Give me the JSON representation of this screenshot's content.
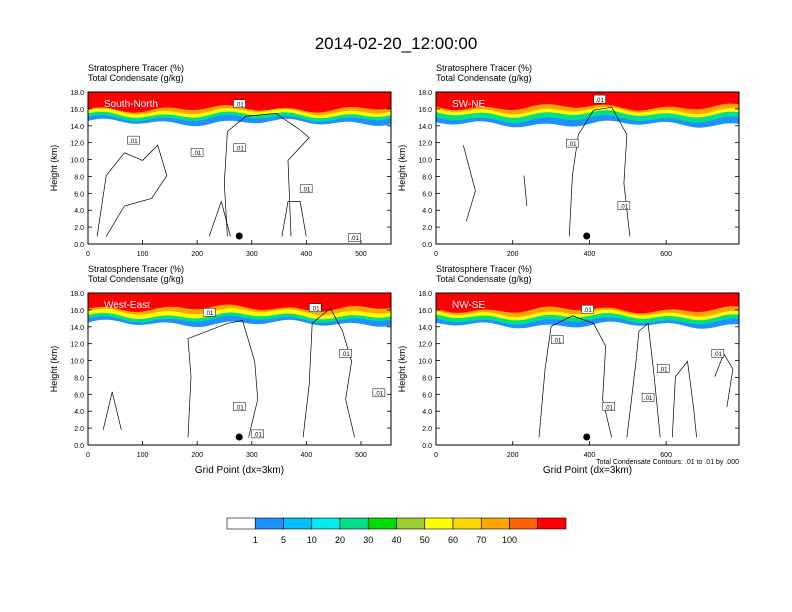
{
  "figure": {
    "title": "2014-02-20_12:00:00",
    "panel_subtitle_1": "Stratosphere Tracer   (%)",
    "panel_subtitle_2": "Total Condensate   (g/kg)",
    "ylabel": "Height (km)",
    "xlabel": "Grid Point (dx=3km)",
    "contour_note": "Total Condensate Contours: .01 to .01 by .000"
  },
  "chart_data": [
    {
      "type": "heatmap",
      "panel": "South-North",
      "ylim": [
        0,
        18
      ],
      "xlim": [
        0,
        555
      ],
      "yticks": [
        "0.0",
        "2.0",
        "4.0",
        "6.0",
        "8.0",
        "10.0",
        "12.0",
        "14.0",
        "16.0",
        "18.0"
      ],
      "xticks": [
        "0",
        "100",
        "200",
        "300",
        "400",
        "500"
      ],
      "tracer_bands_km": {
        "100": 16.0,
        "70": 15.7,
        "50": 15.3,
        "20": 14.9,
        "1": 14.4
      },
      "contour_level": ".01",
      "contour_labels": [
        ".01",
        ".01",
        ".01",
        ".01",
        ".01",
        ".01"
      ],
      "marker_x": 277
    },
    {
      "type": "heatmap",
      "panel": "SW-NE",
      "ylim": [
        0,
        18
      ],
      "xlim": [
        0,
        790
      ],
      "yticks": [
        "0.0",
        "2.0",
        "4.0",
        "6.0",
        "8.0",
        "10.0",
        "12.0",
        "14.0",
        "16.0",
        "18.0"
      ],
      "xticks": [
        "0",
        "200",
        "400",
        "600"
      ],
      "tracer_bands_km": {
        "100": 16.2,
        "70": 15.8,
        "50": 15.4,
        "20": 14.8,
        "1": 14.2
      },
      "contour_level": ".01",
      "contour_labels": [
        ".01",
        ".01",
        ".01"
      ],
      "marker_x": 393
    },
    {
      "type": "heatmap",
      "panel": "West-East",
      "ylim": [
        0,
        18
      ],
      "xlim": [
        0,
        555
      ],
      "yticks": [
        "0.0",
        "2.0",
        "4.0",
        "6.0",
        "8.0",
        "10.0",
        "12.0",
        "14.0",
        "16.0",
        "18.0"
      ],
      "xticks": [
        "0",
        "100",
        "200",
        "300",
        "400",
        "500"
      ],
      "tracer_bands_km": {
        "100": 16.2,
        "70": 15.8,
        "50": 15.3,
        "20": 14.9,
        "1": 14.4
      },
      "contour_level": ".01",
      "contour_labels": [
        ".01",
        ".01",
        ".01",
        ".01",
        ".01",
        ".01"
      ],
      "marker_x": 277
    },
    {
      "type": "heatmap",
      "panel": "NW-SE",
      "ylim": [
        0,
        18
      ],
      "xlim": [
        0,
        790
      ],
      "yticks": [
        "0.0",
        "2.0",
        "4.0",
        "6.0",
        "8.0",
        "10.0",
        "12.0",
        "14.0",
        "16.0",
        "18.0"
      ],
      "xticks": [
        "0",
        "200",
        "400",
        "600"
      ],
      "tracer_bands_km": {
        "100": 16.0,
        "70": 15.6,
        "50": 15.2,
        "20": 14.7,
        "1": 14.2
      },
      "contour_level": ".01",
      "contour_labels": [
        ".01",
        ".01",
        ".01",
        ".01",
        ".01",
        ".01"
      ],
      "marker_x": 393
    }
  ],
  "colorbar": {
    "labels": [
      "1",
      "5",
      "10",
      "20",
      "30",
      "40",
      "50",
      "60",
      "70",
      "100"
    ],
    "colors": [
      "#ffffff",
      "#1e90ff",
      "#00bfff",
      "#00eeee",
      "#00e08a",
      "#00dd00",
      "#9acd32",
      "#ffff00",
      "#ffd700",
      "#ffa500",
      "#ff6000",
      "#ff0000"
    ]
  }
}
